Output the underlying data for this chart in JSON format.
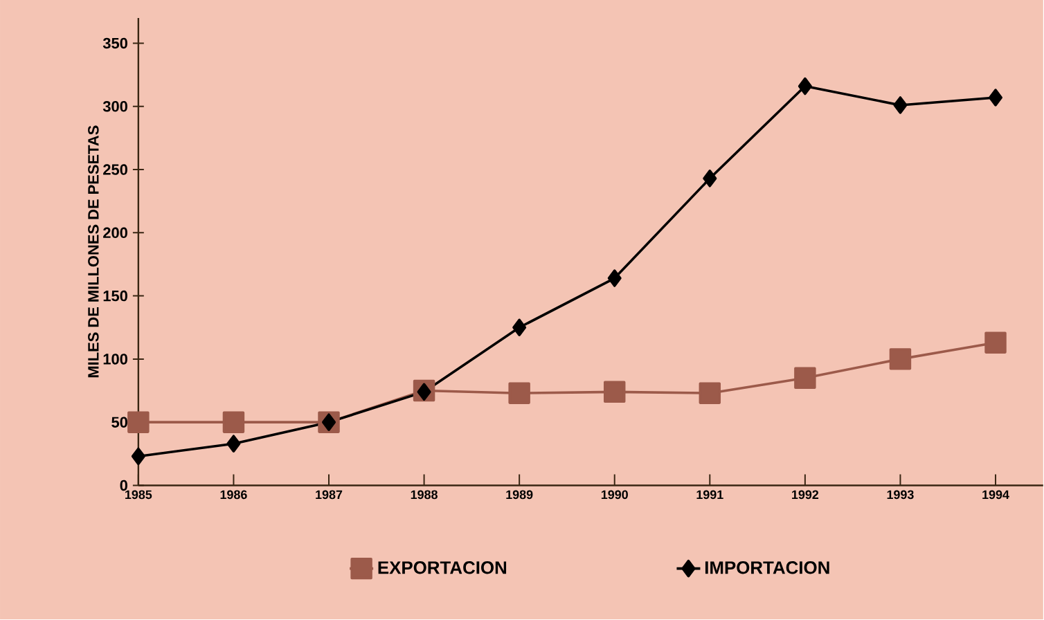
{
  "chart_data": {
    "type": "line",
    "ylabel": "MILES DE MILLONES DE PESETAS",
    "categories": [
      "1985",
      "1986",
      "1987",
      "1988",
      "1989",
      "1990",
      "1991",
      "1992",
      "1993",
      "1994"
    ],
    "series": [
      {
        "name": "EXPORTACION",
        "color": "#9c5a4a",
        "marker": "square",
        "values": [
          50,
          50,
          50,
          75,
          73,
          74,
          73,
          85,
          100,
          113
        ]
      },
      {
        "name": "IMPORTACION",
        "color": "#000000",
        "marker": "diamond",
        "values": [
          23,
          33,
          50,
          74,
          125,
          164,
          243,
          316,
          301,
          307
        ]
      }
    ],
    "ylim": [
      0,
      370
    ],
    "yticks": [
      0,
      50,
      100,
      150,
      200,
      250,
      300,
      350
    ],
    "grid": false,
    "legend": "bottom",
    "line_style": "solid"
  }
}
